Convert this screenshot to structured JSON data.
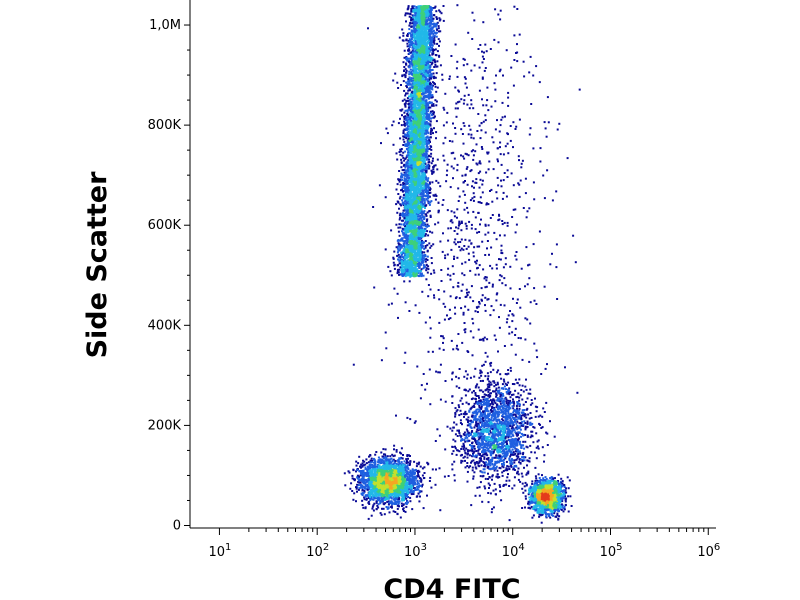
{
  "chart_data": {
    "type": "scatter",
    "style": "flow-cytometry density dot plot",
    "xlabel": "CD4 FITC",
    "ylabel": "Side Scatter",
    "x_scale": "log",
    "xlim": [
      5,
      1200000
    ],
    "ylim": [
      -5000,
      1050000
    ],
    "x_ticks": [
      {
        "base": "10",
        "exp": "1",
        "value": 10
      },
      {
        "base": "10",
        "exp": "2",
        "value": 100
      },
      {
        "base": "10",
        "exp": "3",
        "value": 1000
      },
      {
        "base": "10",
        "exp": "4",
        "value": 10000
      },
      {
        "base": "10",
        "exp": "5",
        "value": 100000
      },
      {
        "base": "10",
        "exp": "6",
        "value": 1000000
      }
    ],
    "y_ticks": [
      {
        "label": "0",
        "value": 0
      },
      {
        "label": "200K",
        "value": 200000
      },
      {
        "label": "400K",
        "value": 400000
      },
      {
        "label": "600K",
        "value": 600000
      },
      {
        "label": "800K",
        "value": 800000
      },
      {
        "label": "1,0M",
        "value": 1000000
      }
    ],
    "populations": [
      {
        "x": 520,
        "y": 90000,
        "n": 2600,
        "sx_log": 0.14,
        "sy": 22000
      },
      {
        "x": 22000,
        "y": 60000,
        "n": 1700,
        "sx_log": 0.08,
        "sy": 16000
      },
      {
        "x": 6500,
        "y": 190000,
        "n": 1800,
        "sx_log": 0.18,
        "sy": 48000
      },
      {
        "x": 900,
        "y": 780000,
        "n": 6000,
        "sx_log": 0.07,
        "sy": 150000,
        "y_range": [
          500000,
          1040000
        ]
      },
      {
        "x": 4000,
        "y": 600000,
        "n": 900,
        "sx_log": 0.4,
        "sy": 230000
      }
    ],
    "colors": [
      "#0a0a96",
      "#1f5fe0",
      "#22b8e8",
      "#3ed07a",
      "#c4e02c",
      "#f5a623",
      "#e43b1c"
    ]
  }
}
